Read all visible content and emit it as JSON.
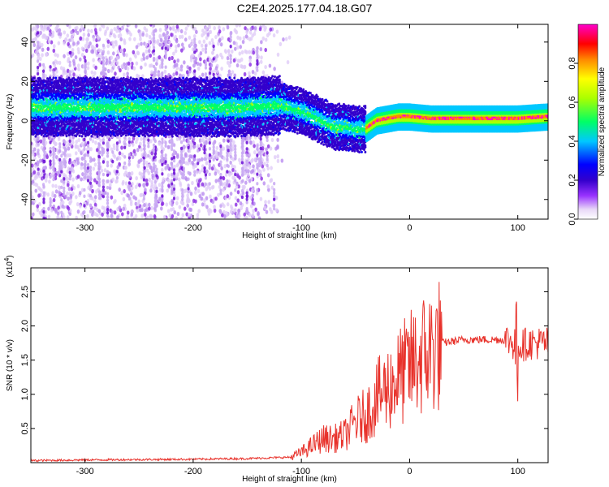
{
  "title": "C2E4.2025.177.04.18.G07",
  "colors": {
    "snr_line": "#e8322b",
    "background": "#ffffff",
    "colorbar": [
      "#ffffff",
      "#e8d8f7",
      "#9933ff",
      "#3300cc",
      "#0000ff",
      "#00c8ff",
      "#00ff66",
      "#aaff00",
      "#ffff00",
      "#ff8800",
      "#ff0000",
      "#ff00cc"
    ]
  },
  "chart_data": [
    {
      "type": "heatmap",
      "xlabel": "Height of straight line (km)",
      "ylabel": "Frequency (Hz)",
      "xlim": [
        -350,
        128
      ],
      "ylim": [
        -50,
        49
      ],
      "x_ticks": [
        -300,
        -200,
        -100,
        0,
        100
      ],
      "y_ticks": [
        -40,
        -20,
        0,
        20,
        40
      ],
      "grid": false,
      "ridge": {
        "x": [
          -350,
          -300,
          -250,
          -200,
          -150,
          -120,
          -100,
          -80,
          -70,
          -60,
          -50,
          -40,
          -30,
          -20,
          -10,
          0,
          20,
          50,
          100,
          128
        ],
        "y": [
          7,
          7,
          7,
          7,
          7,
          8,
          5,
          0,
          -3,
          -3,
          -4,
          -4,
          0,
          1,
          2,
          2,
          1,
          1,
          1,
          2
        ]
      },
      "colorbar": {
        "label": "Normalized spectral amplitude",
        "range": [
          0,
          1
        ],
        "ticks": [
          "0.0",
          "0.2",
          "0.4",
          "0.6",
          "0.8"
        ]
      }
    },
    {
      "type": "line",
      "xlabel": "Height of straight line (km)",
      "ylabel": "SNR (10 * v/v)",
      "y_scale_note": "(x10",
      "y_scale_exp": "4",
      "y_scale_close": ")",
      "xlim": [
        -350,
        128
      ],
      "ylim": [
        0,
        2.85
      ],
      "x_ticks": [
        -300,
        -200,
        -100,
        0,
        100
      ],
      "y_ticks": [
        "0.5",
        "1.0",
        "1.5",
        "2.0",
        "2.5"
      ],
      "grid": false,
      "series": [
        {
          "x": [
            -350,
            -300,
            -200,
            -150,
            -110,
            -100,
            -90,
            -80,
            -70,
            -60,
            -50,
            -40,
            -30,
            -20,
            -10,
            0,
            10,
            20,
            30,
            50,
            70,
            90,
            100,
            110,
            128
          ],
          "y": [
            0.03,
            0.04,
            0.05,
            0.06,
            0.08,
            0.15,
            0.25,
            0.35,
            0.35,
            0.4,
            0.6,
            0.7,
            0.95,
            1.1,
            1.25,
            1.4,
            1.55,
            1.65,
            1.75,
            1.8,
            1.8,
            1.8,
            1.7,
            1.75,
            1.75
          ]
        }
      ]
    }
  ]
}
